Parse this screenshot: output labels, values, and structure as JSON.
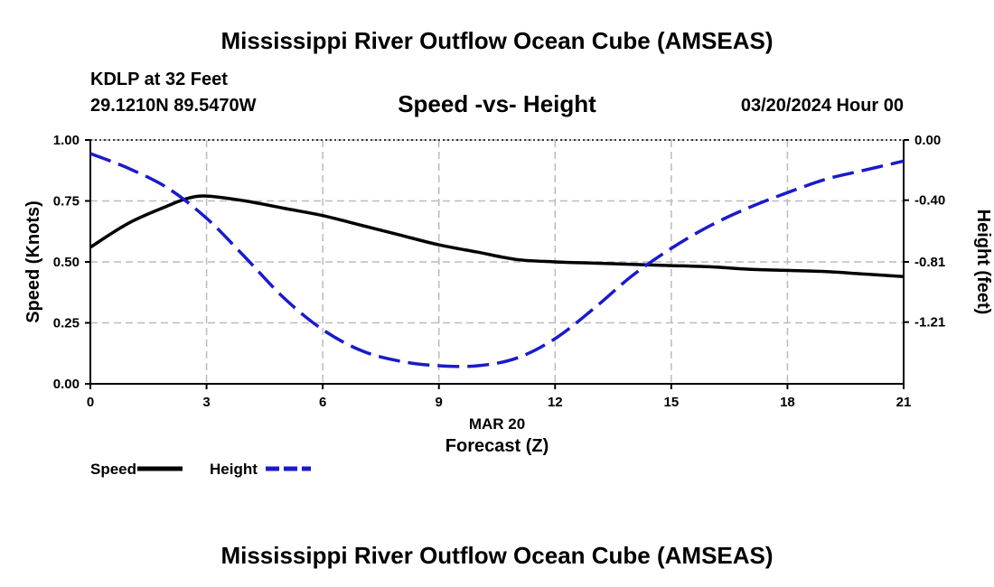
{
  "header": {
    "title": "Mississippi River Outflow Ocean Cube (AMSEAS)",
    "station": "KDLP at 32 Feet",
    "coords": "29.1210N  89.5470W",
    "chart_title": "Speed -vs- Height",
    "datetime": "03/20/2024 Hour 00"
  },
  "footer": {
    "title": "Mississippi River Outflow Ocean Cube (AMSEAS)"
  },
  "chart_data": {
    "type": "line",
    "title": "Speed -vs- Height",
    "xlabel": "Forecast (Z)",
    "xsublabel": "MAR 20",
    "xlim": [
      0,
      21
    ],
    "xticks": [
      0,
      3,
      6,
      9,
      12,
      15,
      18,
      21
    ],
    "y_left": {
      "label": "Speed (Knots)",
      "lim": [
        0,
        1
      ],
      "ticks": [
        0,
        0.25,
        0.5,
        0.75,
        1.0
      ],
      "tick_labels": [
        "0.00",
        "0.25",
        "0.50",
        "0.75",
        "1.00"
      ]
    },
    "y_right": {
      "label": "Height (feet)",
      "lim": [
        -1.62,
        0
      ],
      "ticks": [
        0,
        -0.4,
        -0.81,
        -1.21
      ],
      "tick_labels": [
        "0.00",
        "-0.40",
        "-0.81",
        "-1.21"
      ]
    },
    "grid": true,
    "series": [
      {
        "name": "Speed",
        "axis": "left",
        "color": "#000000",
        "style": "solid",
        "x": [
          0,
          1,
          2,
          2.5,
          3,
          4,
          5,
          6,
          7,
          8,
          9,
          10,
          11,
          12,
          13,
          14,
          15,
          16,
          17,
          18,
          19,
          20,
          21
        ],
        "values": [
          0.56,
          0.66,
          0.73,
          0.76,
          0.77,
          0.75,
          0.72,
          0.69,
          0.65,
          0.61,
          0.57,
          0.54,
          0.51,
          0.5,
          0.495,
          0.49,
          0.485,
          0.48,
          0.47,
          0.465,
          0.46,
          0.45,
          0.44
        ]
      },
      {
        "name": "Height",
        "axis": "right",
        "color": "#1a1acc",
        "style": "dashed",
        "x": [
          0,
          1,
          2,
          3,
          4,
          5,
          6,
          7,
          8,
          9,
          10,
          11,
          12,
          13,
          14,
          15,
          16,
          17,
          18,
          19,
          20,
          21
        ],
        "values": [
          -0.09,
          -0.19,
          -0.32,
          -0.52,
          -0.78,
          -1.05,
          -1.26,
          -1.4,
          -1.47,
          -1.5,
          -1.5,
          -1.45,
          -1.32,
          -1.12,
          -0.9,
          -0.72,
          -0.57,
          -0.45,
          -0.35,
          -0.26,
          -0.2,
          -0.14
        ]
      }
    ],
    "legend": [
      {
        "label": "Speed",
        "color": "#000000",
        "style": "solid"
      },
      {
        "label": "Height",
        "color": "#1a1acc",
        "style": "dashed"
      }
    ]
  }
}
